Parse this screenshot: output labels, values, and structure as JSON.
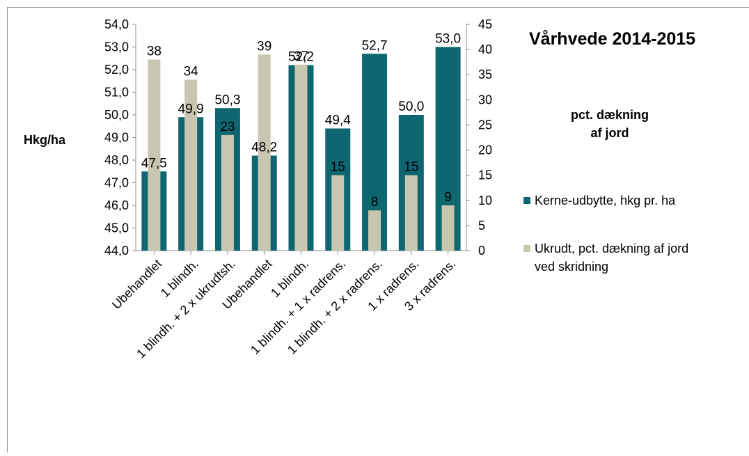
{
  "chart_data": {
    "type": "bar",
    "title": "Vårhvede 2014-2015",
    "ylabel": "Hkg/ha",
    "y2label": "pct. dækning af jord",
    "y2label_lines": [
      "pct. dækning",
      "af jord"
    ],
    "ylim": [
      44,
      54
    ],
    "y2lim": [
      0,
      45
    ],
    "y_ticks": [
      "44,0",
      "45,0",
      "46,0",
      "47,0",
      "48,0",
      "49,0",
      "50,0",
      "51,0",
      "52,0",
      "53,0",
      "54,0"
    ],
    "y2_ticks": [
      "0",
      "5",
      "10",
      "15",
      "20",
      "25",
      "30",
      "35",
      "40",
      "45"
    ],
    "categories": [
      "Ubehandlet",
      "1 blindh.",
      "1 blindh. + 2 x ukrudtsh.",
      "Ubehandlet",
      "1 blindh.",
      "1 blindh. + 1 x radrens.",
      "1 blindh. + 2 x radrens.",
      "1 x radrens.",
      "3 x radrens."
    ],
    "series": [
      {
        "name": "Kerne-udbytte, hkg pr. ha",
        "axis": "left",
        "color": "#0e6670",
        "values": [
          47.5,
          49.9,
          50.3,
          48.2,
          52.2,
          49.4,
          52.7,
          50.0,
          53.0
        ],
        "labels": [
          "47,5",
          "49,9",
          "50,3",
          "48,2",
          "52,2",
          "49,4",
          "52,7",
          "50,0",
          "53,0"
        ]
      },
      {
        "name": "Ukrudt, pct. dækning af jord ved skridning",
        "legend_lines": [
          "Ukrudt, pct. dækning af jord",
          "ved skridning"
        ],
        "axis": "right",
        "color": "#c8c6b0",
        "values": [
          38,
          34,
          23,
          39,
          37,
          15,
          8,
          15,
          9
        ],
        "labels": [
          "38",
          "34",
          "23",
          "39",
          "37",
          "15",
          "8",
          "15",
          "9"
        ]
      }
    ],
    "grid": false,
    "legend_position": "right"
  }
}
